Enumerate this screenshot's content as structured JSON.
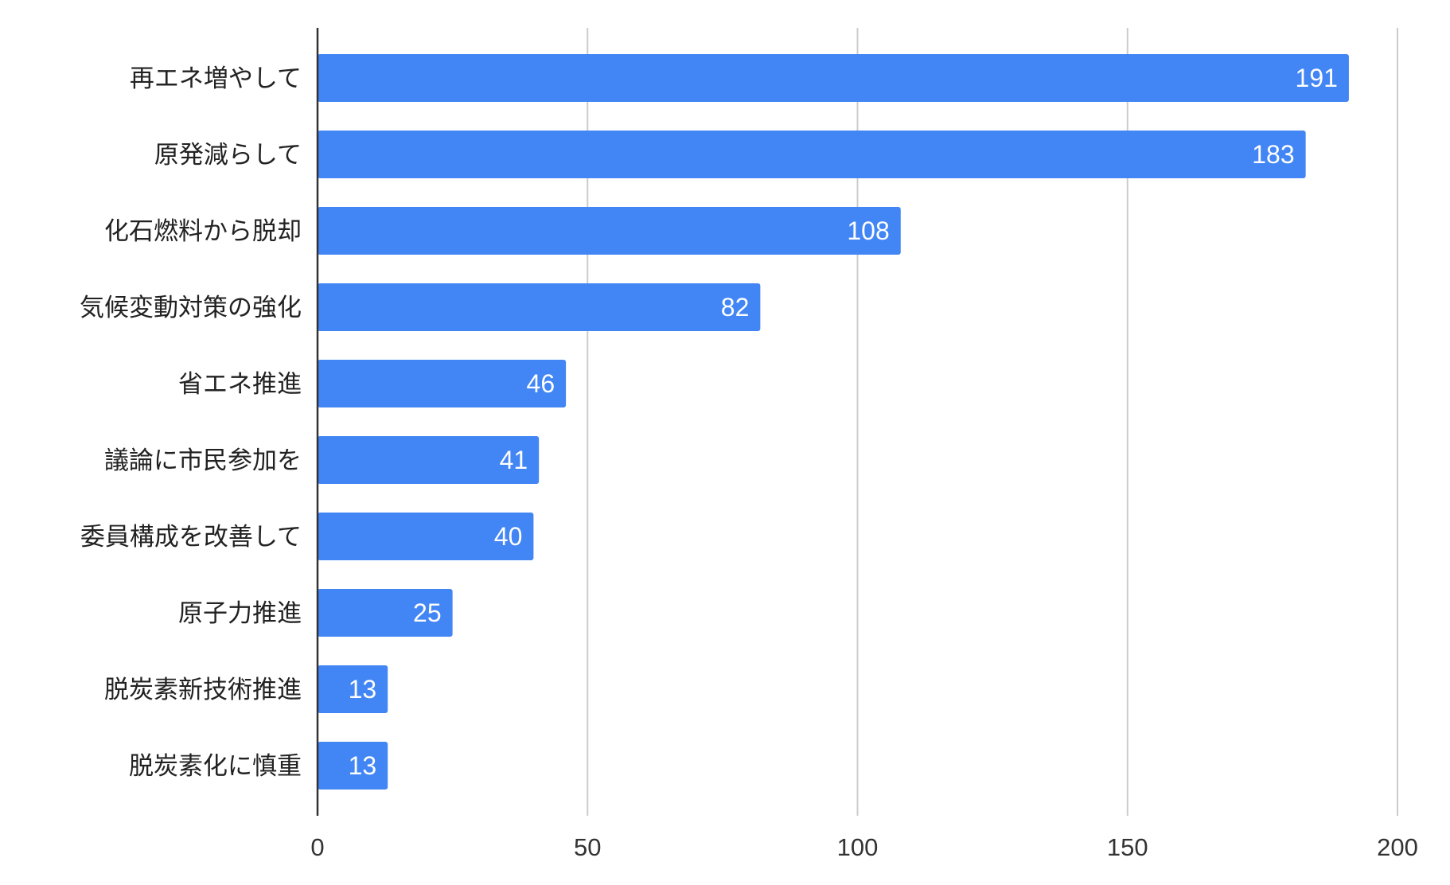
{
  "chart_data": {
    "type": "bar",
    "orientation": "horizontal",
    "title": "",
    "xlabel": "",
    "ylabel": "",
    "categories": [
      "再エネ増やして",
      "原発減らして",
      "化石燃料から脱却",
      "気候変動対策の強化",
      "省エネ推進",
      "議論に市民参加を",
      "委員構成を改善して",
      "原子力推進",
      "脱炭素新技術推進",
      "脱炭素化に慎重"
    ],
    "values": [
      191,
      183,
      108,
      82,
      46,
      41,
      40,
      25,
      13,
      13
    ],
    "xlim": [
      0,
      200
    ],
    "xticks": [
      "0",
      "50",
      "100",
      "150",
      "200"
    ],
    "grid": true,
    "legend": "none",
    "data_labels": true,
    "colors": {
      "bar": "#4285f4",
      "grid": "#cccccc",
      "axis": "#333333",
      "value_label": "#ffffff"
    }
  }
}
